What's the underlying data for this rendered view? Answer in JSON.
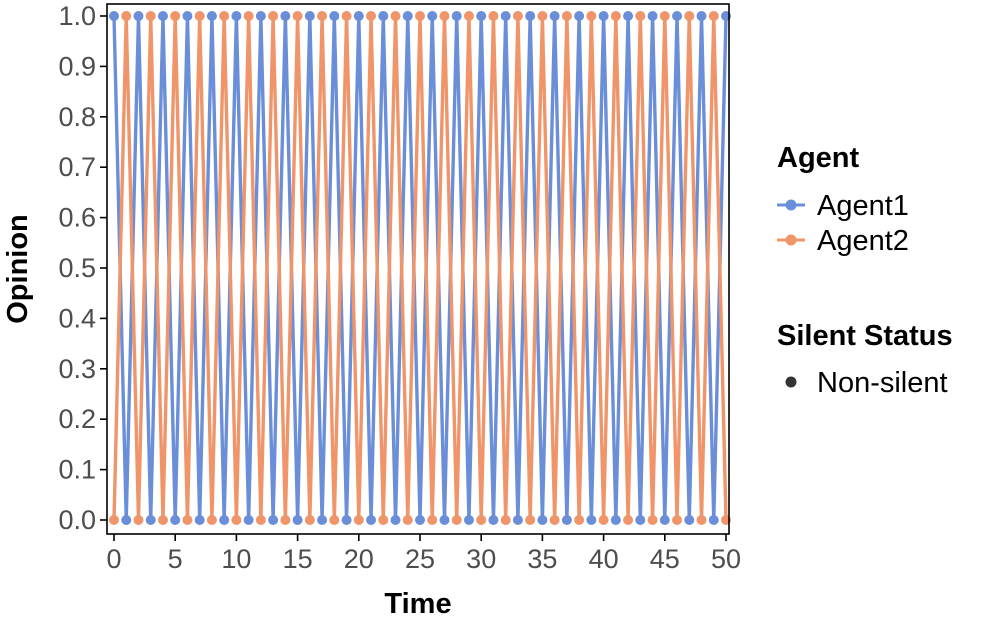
{
  "chart_data": {
    "type": "line",
    "title": "",
    "xlabel": "Time",
    "ylabel": "Opinion",
    "xlim": [
      0,
      50
    ],
    "ylim": [
      0,
      1
    ],
    "xticks": [
      "0",
      "5",
      "10",
      "15",
      "20",
      "25",
      "30",
      "35",
      "40",
      "45",
      "50"
    ],
    "yticks": [
      "0.0",
      "0.1",
      "0.2",
      "0.3",
      "0.4",
      "0.5",
      "0.6",
      "0.7",
      "0.8",
      "0.9",
      "1.0"
    ],
    "grid": false,
    "markers": true,
    "x": [
      0,
      1,
      2,
      3,
      4,
      5,
      6,
      7,
      8,
      9,
      10,
      11,
      12,
      13,
      14,
      15,
      16,
      17,
      18,
      19,
      20,
      21,
      22,
      23,
      24,
      25,
      26,
      27,
      28,
      29,
      30,
      31,
      32,
      33,
      34,
      35,
      36,
      37,
      38,
      39,
      40,
      41,
      42,
      43,
      44,
      45,
      46,
      47,
      48,
      49,
      50
    ],
    "series": [
      {
        "name": "Agent1",
        "color": "#6a8fd8",
        "values": [
          1,
          0,
          1,
          0,
          1,
          0,
          1,
          0,
          1,
          0,
          1,
          0,
          1,
          0,
          1,
          0,
          1,
          0,
          1,
          0,
          1,
          0,
          1,
          0,
          1,
          0,
          1,
          0,
          1,
          0,
          1,
          0,
          1,
          0,
          1,
          0,
          1,
          0,
          1,
          0,
          1,
          0,
          1,
          0,
          1,
          0,
          1,
          0,
          1,
          0,
          1
        ]
      },
      {
        "name": "Agent2",
        "color": "#f0956a",
        "values": [
          0,
          1,
          0,
          1,
          0,
          1,
          0,
          1,
          0,
          1,
          0,
          1,
          0,
          1,
          0,
          1,
          0,
          1,
          0,
          1,
          0,
          1,
          0,
          1,
          0,
          1,
          0,
          1,
          0,
          1,
          0,
          1,
          0,
          1,
          0,
          1,
          0,
          1,
          0,
          1,
          0,
          1,
          0,
          1,
          0,
          1,
          0,
          1,
          0,
          1,
          0
        ]
      }
    ],
    "legend": {
      "placement": "right",
      "groups": [
        {
          "title": "Agent",
          "entries": [
            {
              "label": "Agent1",
              "color": "#6a8fd8",
              "kind": "line-point"
            },
            {
              "label": "Agent2",
              "color": "#f0956a",
              "kind": "line-point"
            }
          ]
        },
        {
          "title": "Silent Status",
          "entries": [
            {
              "label": "Non-silent",
              "color": "#333333",
              "kind": "point"
            }
          ]
        }
      ]
    }
  }
}
